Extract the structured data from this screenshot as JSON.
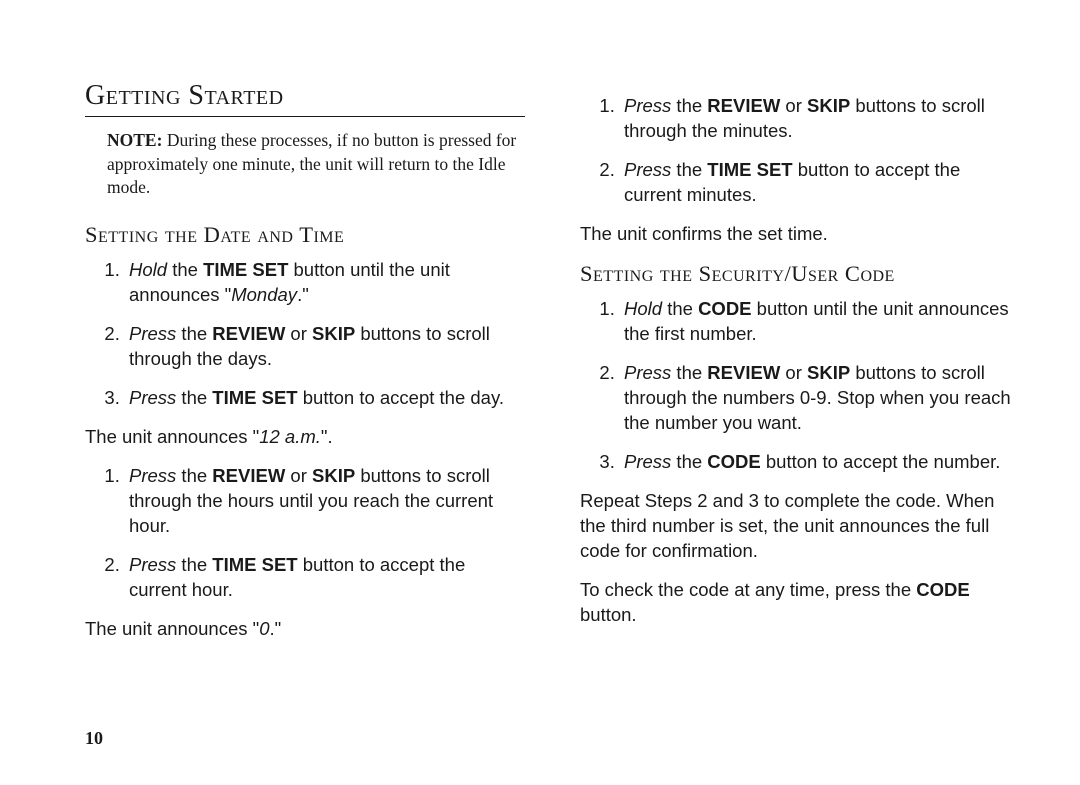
{
  "page_number": "10",
  "typography": {
    "heading_font": "Georgia, serif",
    "body_font": "Helvetica, Arial, sans-serif",
    "heading_size_pt": 28,
    "subheading_size_pt": 22.5,
    "body_size_pt": 18.5,
    "note_size_pt": 17.5,
    "text_color": "#1a1a1a",
    "background_color": "#ffffff",
    "rule_color": "#1a1a1a"
  },
  "left": {
    "main_heading": "Getting Started",
    "note_label": "NOTE:",
    "note_text": "During these processes, if no button is pressed for approximately one minute, the unit will return to the Idle mode.",
    "subheading": "Setting the Date and Time",
    "list1": {
      "i1": {
        "pre_i": "Hold",
        "mid": " the ",
        "b1": "TIME SET",
        "post": " button until the unit announces \"",
        "i2": "Monday",
        "end": ".\""
      },
      "i2": {
        "pre_i": "Press",
        "mid": " the ",
        "b1": "REVIEW",
        "mid2": " or ",
        "b2": "SKIP",
        "post": " buttons to scroll through the days."
      },
      "i3": {
        "pre_i": "Press",
        "mid": " the ",
        "b1": "TIME SET",
        "post": " button to accept the day."
      }
    },
    "para1_a": "The unit announces \"",
    "para1_i": "12 a.m.",
    "para1_b": "\".",
    "list2": {
      "i1": {
        "pre_i": "Press",
        "mid": " the ",
        "b1": "REVIEW",
        "mid2": " or ",
        "b2": "SKIP",
        "post": " buttons to scroll through the hours until you reach the current hour."
      },
      "i2": {
        "pre_i": "Press",
        "mid": " the ",
        "b1": "TIME SET",
        "post": " button to accept the current hour."
      }
    },
    "para2_a": "The unit announces \"",
    "para2_i": "0",
    "para2_b": ".\""
  },
  "right": {
    "list3": {
      "i1": {
        "pre_i": "Press",
        "mid": " the ",
        "b1": "REVIEW",
        "mid2": " or ",
        "b2": "SKIP",
        "post": " buttons to scroll through the minutes."
      },
      "i2": {
        "pre_i": "Press",
        "mid": " the ",
        "b1": "TIME SET",
        "post": " button to accept the current minutes."
      }
    },
    "para3": "The unit confirms the set time.",
    "subheading": "Setting the Security/User Code",
    "list4": {
      "i1": {
        "pre_i": "Hold",
        "mid": " the ",
        "b1": "CODE",
        "post": " button until the unit announces the first number."
      },
      "i2": {
        "pre_i": "Press",
        "mid": " the ",
        "b1": "REVIEW",
        "mid2": " or ",
        "b2": "SKIP",
        "post": " buttons to scroll through the numbers 0-9. Stop when you reach the number you want."
      },
      "i3": {
        "pre_i": "Press",
        "mid": " the ",
        "b1": "CODE",
        "post": " button to accept the number."
      }
    },
    "para4": "Repeat Steps 2 and 3 to complete the code. When the third number is set, the unit announces the full code for confirmation.",
    "para5_a": "To check the code at any time, press the ",
    "para5_b": "CODE",
    "para5_c": " button."
  }
}
